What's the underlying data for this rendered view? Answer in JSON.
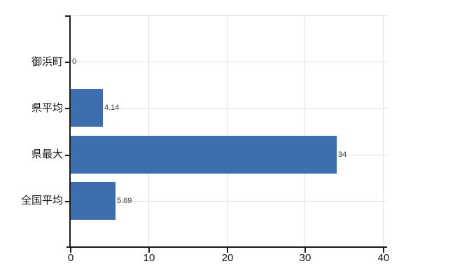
{
  "chart_data": {
    "type": "bar",
    "orientation": "horizontal",
    "title": "",
    "categories": [
      "御浜町",
      "県平均",
      "県最大",
      "全国平均"
    ],
    "values": [
      0,
      4.14,
      34,
      5.69
    ],
    "value_labels": [
      "0",
      "4.14",
      "34",
      "5.69"
    ],
    "xlim": [
      0,
      40
    ],
    "xticks": [
      0,
      10,
      20,
      30,
      40
    ],
    "xtick_labels": [
      "0",
      "10",
      "20",
      "30",
      "40"
    ],
    "grid": true,
    "legend": false,
    "bar_color": "#3f6eae",
    "gridline_color": "#dce3dc",
    "axis_color": "#1a1a1a",
    "text_color": "#141414",
    "value_label_color": "#3c3c3c",
    "background_color": "#ffffff"
  }
}
